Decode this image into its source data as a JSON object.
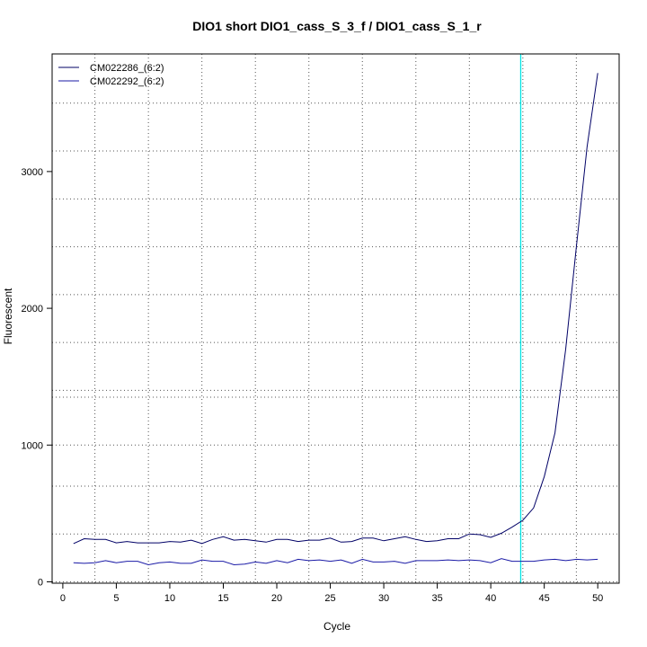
{
  "chart_data": {
    "type": "line",
    "title": "DIO1 short DIO1_cass_S_3_f / DIO1_cass_S_1_r",
    "xlabel": "Cycle",
    "ylabel": "Fluorescent",
    "xlim": [
      -1,
      52
    ],
    "ylim": [
      -10,
      3860
    ],
    "x_ticks": [
      0,
      5,
      10,
      15,
      20,
      25,
      30,
      35,
      40,
      45,
      50
    ],
    "y_ticks": [
      0,
      1000,
      2000,
      3000
    ],
    "grid": true,
    "grid_x": [
      3,
      8,
      13,
      18,
      23,
      28,
      33,
      38,
      43,
      48
    ],
    "grid_y": [
      0,
      350,
      700,
      1000,
      1350,
      1400,
      1750,
      2100,
      2450,
      2800,
      3150,
      3500
    ],
    "threshold_x": 42.8,
    "threshold_color": "#00e5e5",
    "legend_position": "top-left",
    "x": [
      1,
      2,
      3,
      4,
      5,
      6,
      7,
      8,
      9,
      10,
      11,
      12,
      13,
      14,
      15,
      16,
      17,
      18,
      19,
      20,
      21,
      22,
      23,
      24,
      25,
      26,
      27,
      28,
      29,
      30,
      31,
      32,
      33,
      34,
      35,
      36,
      37,
      38,
      39,
      40,
      41,
      42,
      43,
      44,
      45,
      46,
      47,
      48,
      49,
      50
    ],
    "series": [
      {
        "name": "CM022286_(6:2)",
        "color": "#000066",
        "values": [
          280,
          315,
          310,
          310,
          285,
          295,
          285,
          285,
          285,
          295,
          290,
          305,
          280,
          310,
          330,
          305,
          310,
          300,
          290,
          310,
          310,
          295,
          305,
          305,
          320,
          290,
          295,
          320,
          320,
          300,
          315,
          330,
          310,
          295,
          300,
          315,
          315,
          350,
          345,
          325,
          355,
          400,
          450,
          540,
          770,
          1090,
          1700,
          2450,
          3180,
          3720
        ]
      },
      {
        "name": "CM022292_(6:2)",
        "color": "#1a1aa6",
        "values": [
          140,
          135,
          140,
          155,
          140,
          150,
          150,
          125,
          140,
          145,
          135,
          135,
          160,
          150,
          150,
          125,
          130,
          145,
          135,
          155,
          140,
          165,
          155,
          160,
          150,
          160,
          135,
          165,
          145,
          145,
          150,
          135,
          155,
          155,
          155,
          160,
          155,
          160,
          155,
          140,
          170,
          150,
          150,
          150,
          160,
          165,
          155,
          165,
          160,
          165
        ]
      }
    ]
  }
}
